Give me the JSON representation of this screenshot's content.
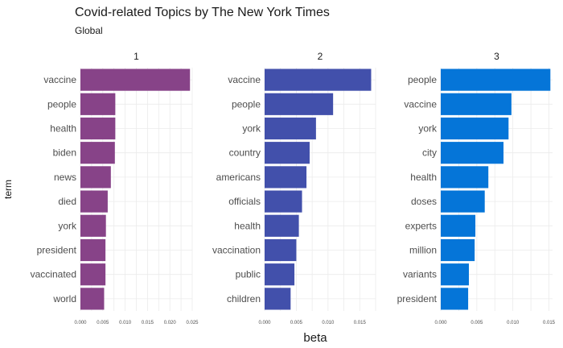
{
  "chart_data": {
    "type": "bar",
    "orientation": "horizontal",
    "title": "Covid-related Topics by The New York Times",
    "subtitle": "Global",
    "xlabel": "beta",
    "ylabel": "term",
    "grid": true,
    "facets": [
      {
        "label": "1",
        "color": "#874388",
        "xlim": [
          0,
          0.025
        ],
        "ticks": [
          "0.000",
          "0.005",
          "0.010",
          "0.015",
          "0.020",
          "0.025"
        ],
        "tick_values": [
          0,
          0.005,
          0.01,
          0.015,
          0.02,
          0.025
        ],
        "categories": [
          "vaccine",
          "people",
          "health",
          "biden",
          "news",
          "died",
          "york",
          "president",
          "vaccinated",
          "world"
        ],
        "values": [
          0.0245,
          0.0078,
          0.0078,
          0.0077,
          0.0068,
          0.0061,
          0.0057,
          0.0056,
          0.0056,
          0.0053
        ]
      },
      {
        "label": "2",
        "color": "#4250ab",
        "xlim": [
          0,
          0.0175
        ],
        "ticks": [
          "0.000",
          "0.005",
          "0.010",
          "0.015"
        ],
        "tick_values": [
          0,
          0.005,
          0.01,
          0.015
        ],
        "categories": [
          "vaccine",
          "people",
          "york",
          "country",
          "americans",
          "officials",
          "health",
          "vaccination",
          "public",
          "children"
        ],
        "values": [
          0.0168,
          0.0108,
          0.0081,
          0.0071,
          0.0066,
          0.0059,
          0.0054,
          0.005,
          0.0047,
          0.0041
        ]
      },
      {
        "label": "3",
        "color": "#0575d8",
        "xlim": [
          0,
          0.0155
        ],
        "ticks": [
          "0.000",
          "0.005",
          "0.010",
          "0.015"
        ],
        "tick_values": [
          0,
          0.005,
          0.01,
          0.015
        ],
        "categories": [
          "people",
          "vaccine",
          "york",
          "city",
          "health",
          "doses",
          "experts",
          "million",
          "variants",
          "president"
        ],
        "values": [
          0.0152,
          0.0098,
          0.0094,
          0.0087,
          0.0066,
          0.0061,
          0.0048,
          0.0047,
          0.0039,
          0.0038
        ]
      }
    ]
  }
}
